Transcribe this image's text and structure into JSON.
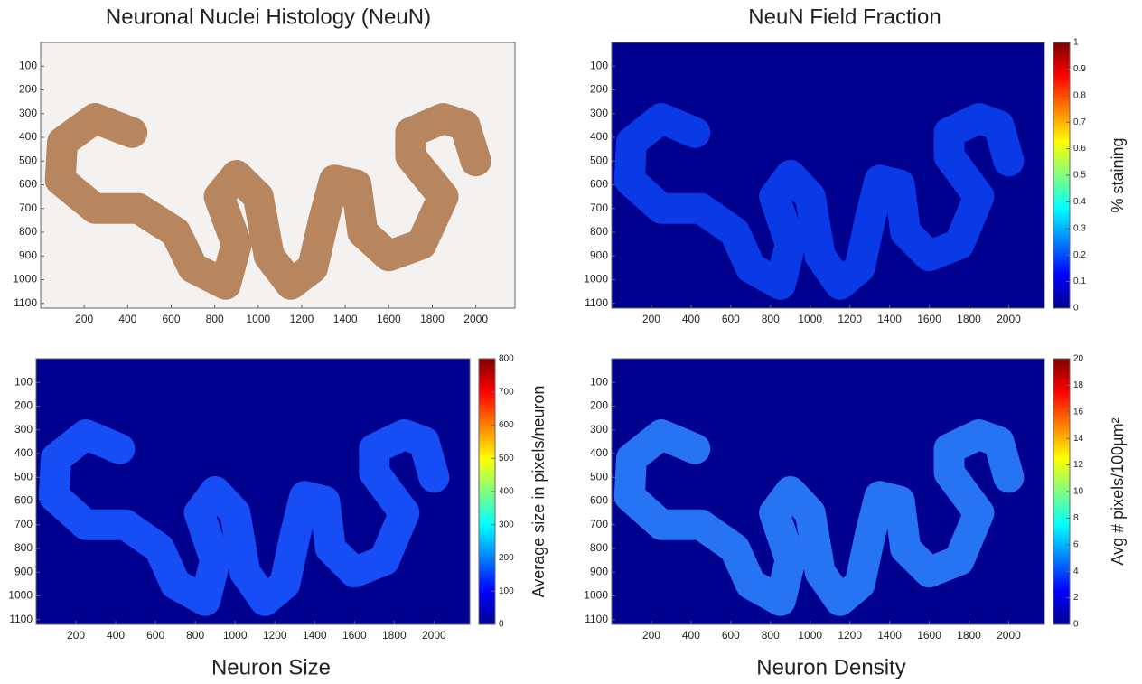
{
  "chart_data": [
    {
      "type": "heatmap",
      "title": "Neuronal Nuclei Histology (NeuN)",
      "xlim": [
        0,
        2180
      ],
      "ylim": [
        0,
        1120
      ],
      "xticks": [
        200,
        400,
        600,
        800,
        1000,
        1200,
        1400,
        1600,
        1800,
        2000
      ],
      "yticks": [
        100,
        200,
        300,
        400,
        500,
        600,
        700,
        800,
        900,
        1000,
        1100
      ]
    },
    {
      "type": "heatmap",
      "title": "NeuN Field Fraction",
      "xlim": [
        0,
        2180
      ],
      "ylim": [
        0,
        1120
      ],
      "xticks": [
        200,
        400,
        600,
        800,
        1000,
        1200,
        1400,
        1600,
        1800,
        2000
      ],
      "yticks": [
        100,
        200,
        300,
        400,
        500,
        600,
        700,
        800,
        900,
        1000,
        1100
      ],
      "colorbar_label": "% staining",
      "clim": [
        0,
        1
      ],
      "cticks": [
        0,
        0.1,
        0.2,
        0.3,
        0.4,
        0.5,
        0.6,
        0.7,
        0.8,
        0.9,
        1
      ]
    },
    {
      "type": "heatmap",
      "title": "Neuron Size",
      "xlim": [
        0,
        2180
      ],
      "ylim": [
        0,
        1120
      ],
      "xticks": [
        200,
        400,
        600,
        800,
        1000,
        1200,
        1400,
        1600,
        1800,
        2000
      ],
      "yticks": [
        100,
        200,
        300,
        400,
        500,
        600,
        700,
        800,
        900,
        1000,
        1100
      ],
      "colorbar_label": "Average size in pixels/neuron",
      "clim": [
        0,
        800
      ],
      "cticks": [
        0,
        100,
        200,
        300,
        400,
        500,
        600,
        700,
        800
      ]
    },
    {
      "type": "heatmap",
      "title": "Neuron Density",
      "xlim": [
        0,
        2180
      ],
      "ylim": [
        0,
        1120
      ],
      "xticks": [
        200,
        400,
        600,
        800,
        1000,
        1200,
        1400,
        1600,
        1800,
        2000
      ],
      "yticks": [
        100,
        200,
        300,
        400,
        500,
        600,
        700,
        800,
        900,
        1000,
        1100
      ],
      "colorbar_label": "Avg # pixels/100µm²",
      "clim": [
        0,
        20
      ],
      "cticks": [
        0,
        2,
        4,
        6,
        8,
        10,
        12,
        14,
        16,
        18,
        20
      ]
    }
  ]
}
